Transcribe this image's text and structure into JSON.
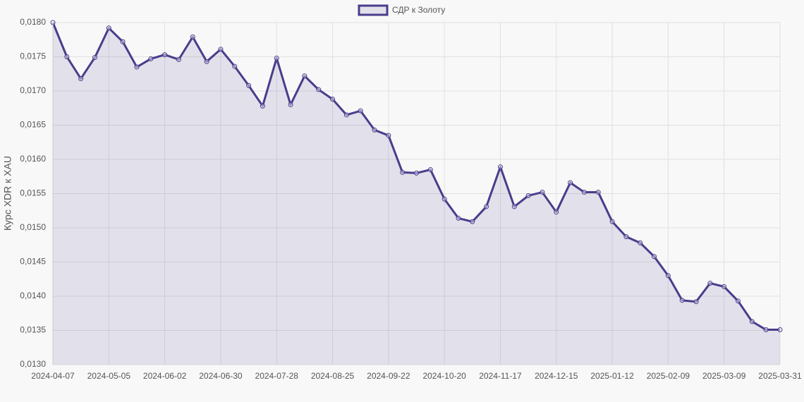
{
  "chart_data": {
    "type": "line",
    "y_axis_label": "Курс XDR к XAU",
    "categories": [
      "2024-04-07",
      null,
      null,
      null,
      "2024-05-05",
      null,
      null,
      null,
      "2024-06-02",
      null,
      null,
      null,
      "2024-06-30",
      null,
      null,
      null,
      "2024-07-28",
      null,
      null,
      null,
      "2024-08-25",
      null,
      null,
      null,
      "2024-09-22",
      null,
      null,
      null,
      "2024-10-20",
      null,
      null,
      null,
      "2024-11-17",
      null,
      null,
      null,
      "2024-12-15",
      null,
      null,
      null,
      "2025-01-12",
      null,
      null,
      null,
      "2025-02-09",
      null,
      null,
      null,
      "2025-03-09",
      null,
      null,
      null,
      "2025-03-31"
    ],
    "series": [
      {
        "name": "СДР к Золоту",
        "color": "#483d8b",
        "fill": "rgba(72,61,139,0.12)",
        "values": [
          0.018,
          0.0175,
          0.01718,
          0.01749,
          0.01792,
          0.01772,
          0.01735,
          0.01747,
          0.01753,
          0.01746,
          0.01779,
          0.01743,
          0.01761,
          0.01736,
          0.01708,
          0.01678,
          0.01748,
          0.0168,
          0.01722,
          0.01702,
          0.01688,
          0.01665,
          0.01671,
          0.01643,
          0.01635,
          0.01581,
          0.0158,
          0.01585,
          0.01542,
          0.01514,
          0.01509,
          0.01531,
          0.01589,
          0.01531,
          0.01547,
          0.01552,
          0.01523,
          0.01566,
          0.01552,
          0.01552,
          0.01509,
          0.01487,
          0.01478,
          0.01458,
          0.0143,
          0.01394,
          0.01392,
          0.01419,
          0.01414,
          0.01393,
          0.01363,
          0.01351,
          0.01351
        ]
      }
    ],
    "ylim": [
      0.013,
      0.018
    ],
    "yticks": [
      {
        "value": 0.013,
        "label": "0,0130"
      },
      {
        "value": 0.0135,
        "label": "0,0135"
      },
      {
        "value": 0.014,
        "label": "0,0140"
      },
      {
        "value": 0.0145,
        "label": "0,0145"
      },
      {
        "value": 0.015,
        "label": "0,0150"
      },
      {
        "value": 0.0155,
        "label": "0,0155"
      },
      {
        "value": 0.016,
        "label": "0,0160"
      },
      {
        "value": 0.0165,
        "label": "0,0165"
      },
      {
        "value": 0.017,
        "label": "0,0170"
      },
      {
        "value": 0.0175,
        "label": "0,0175"
      },
      {
        "value": 0.018,
        "label": "0,0180"
      }
    ],
    "grid": true,
    "legend": "top"
  }
}
